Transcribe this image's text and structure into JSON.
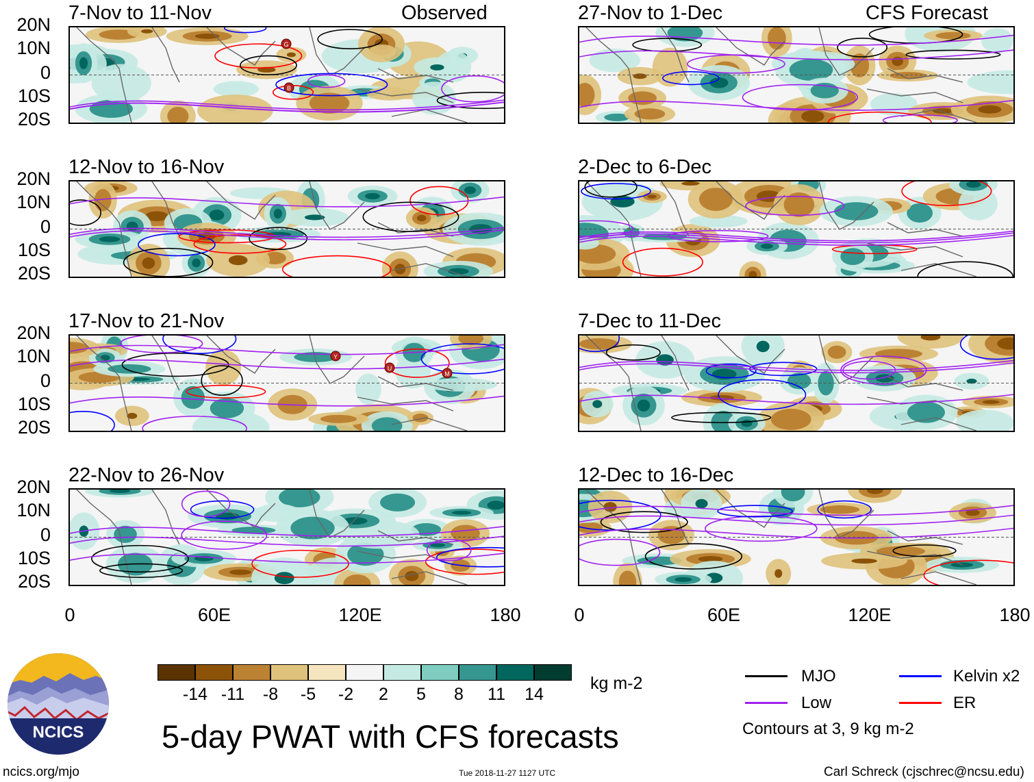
{
  "headers": {
    "observed": "Observed",
    "forecast": "CFS Forecast"
  },
  "lat_labels": [
    "20N",
    "10N",
    "0",
    "10S",
    "20S"
  ],
  "lon_labels": [
    "0",
    "60E",
    "120E",
    "180"
  ],
  "panels_left": [
    {
      "title": "7-Nov to 11-Nov"
    },
    {
      "title": "12-Nov to 16-Nov"
    },
    {
      "title": "17-Nov to 21-Nov"
    },
    {
      "title": "22-Nov to 26-Nov"
    }
  ],
  "panels_right": [
    {
      "title": "27-Nov to 1-Dec"
    },
    {
      "title": "2-Dec to 6-Dec"
    },
    {
      "title": "7-Dec to 11-Dec"
    },
    {
      "title": "12-Dec to 16-Dec"
    }
  ],
  "storms": {
    "p1": [
      "G",
      "B"
    ],
    "p3": [
      "Y",
      "U",
      "M"
    ]
  },
  "colorbar": {
    "colors": [
      "#5a3300",
      "#8c5308",
      "#bc8233",
      "#dfc27c",
      "#f5e6c0",
      "#f5f5f5",
      "#c5eae3",
      "#7fcdc0",
      "#35978f",
      "#01665e",
      "#003c30"
    ],
    "labels": [
      "-14",
      "-11",
      "-8",
      "-5",
      "-2",
      "2",
      "5",
      "8",
      "11",
      "14"
    ],
    "units": "kg m-2"
  },
  "legend": {
    "items": [
      {
        "label": "MJO",
        "color": "#000000"
      },
      {
        "label": "Kelvin x2",
        "color": "#0000ff"
      },
      {
        "label": "Low",
        "color": "#a020f0"
      },
      {
        "label": "ER",
        "color": "#ff0000"
      }
    ],
    "note": "Contours at 3, 9 kg m-2"
  },
  "logo": {
    "text": "NCICS"
  },
  "main_title": "5-day PWAT with CFS forecasts",
  "footer": {
    "left": "ncics.org/mjo",
    "center": "Tue 2018-11-27 1127 UTC",
    "right": "Carl Schreck (cjschrec@ncsu.edu)"
  }
}
